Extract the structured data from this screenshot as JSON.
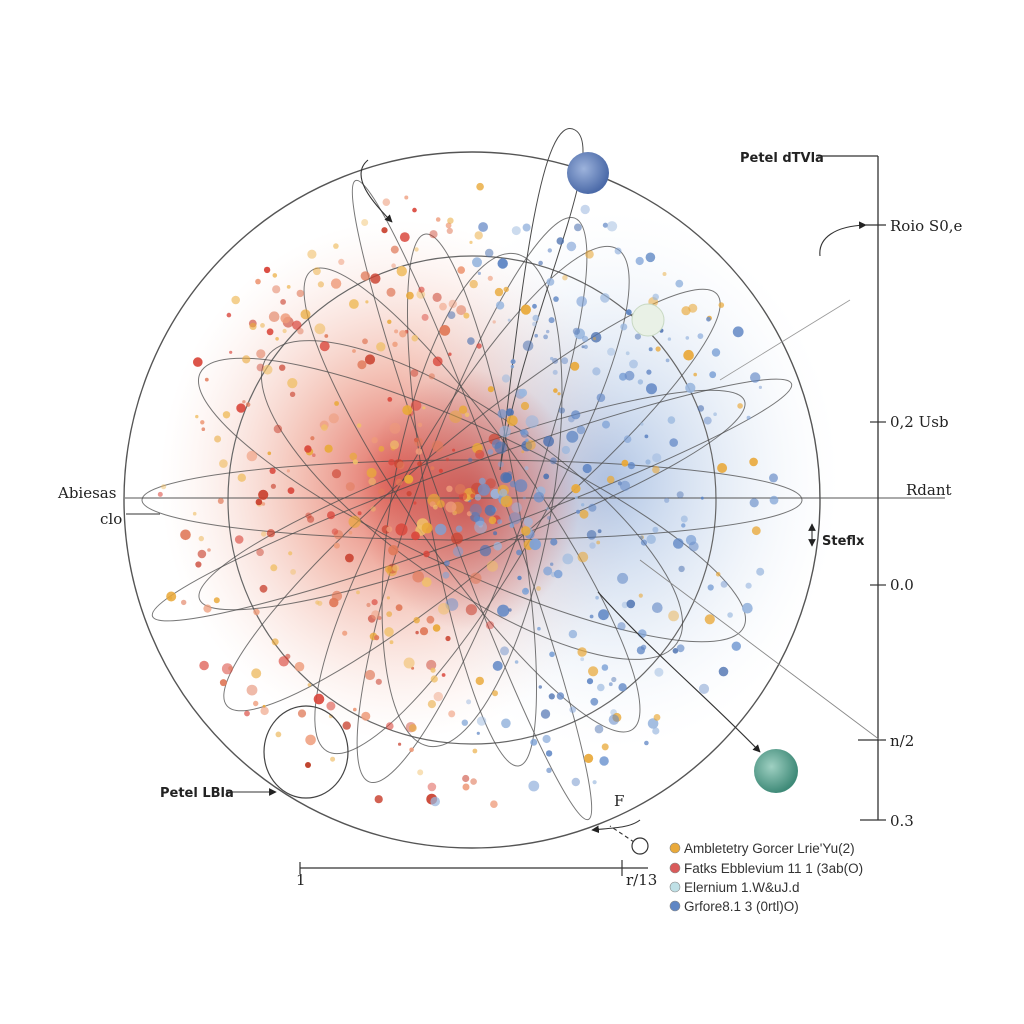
{
  "labels": {
    "top_right_title": "Petel dTVla",
    "right_tick_top": "Roio S0,e",
    "right_tick_mid": "0,2 Usb",
    "right_axis": "Rdant",
    "right_tick_zero": "0.0",
    "right_tick_lower": "n/2",
    "right_tick_bottom": "0.3",
    "left_axis": "Abiesas",
    "left_sub": "clo",
    "inner_marker": "Steflx",
    "bottom_left_label": "Petel LBla",
    "bottom_axis_start": "1",
    "bottom_axis_end": "r/13",
    "small_marker": "F"
  },
  "legend": [
    {
      "label": "Ambletetry Gorcer Lrie'Yu(2)",
      "color": "#e9a93a"
    },
    {
      "label": "Fatks Ebblevium 11 1 (3ab(O)",
      "color": "#d95a5a"
    },
    {
      "label": "Elernium 1.W&uJ.d",
      "color": "#bfe0e6"
    },
    {
      "label": "Grfore8.1 3 (0rtl)O)",
      "color": "#5f86c4"
    }
  ],
  "colors": {
    "warm": "#d9453a",
    "hot": "#e9a93a",
    "cool": "#5f86c4",
    "planet_top": "#5f7fb8",
    "planet_bottom": "#4f9c8a"
  }
}
